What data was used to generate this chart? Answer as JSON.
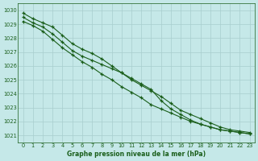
{
  "xlabel": "Graphe pression niveau de la mer (hPa)",
  "ylim": [
    1020.5,
    1030.5
  ],
  "xlim": [
    -0.5,
    23.5
  ],
  "yticks": [
    1021,
    1022,
    1023,
    1024,
    1025,
    1026,
    1027,
    1028,
    1029,
    1030
  ],
  "xticks": [
    0,
    1,
    2,
    3,
    4,
    5,
    6,
    7,
    8,
    9,
    10,
    11,
    12,
    13,
    14,
    15,
    16,
    17,
    18,
    19,
    20,
    21,
    22,
    23
  ],
  "bg_color": "#c5e8e8",
  "grid_color": "#a8cece",
  "line_color": "#1a5e1a",
  "line1": [
    1029.8,
    1029.4,
    1029.1,
    1028.8,
    1028.2,
    1027.6,
    1027.2,
    1026.9,
    1026.5,
    1026.0,
    1025.5,
    1025.0,
    1024.6,
    1024.2,
    1023.8,
    1023.3,
    1022.8,
    1022.5,
    1022.2,
    1021.9,
    1021.6,
    1021.4,
    1021.3,
    1021.2
  ],
  "line2": [
    1029.5,
    1029.1,
    1028.8,
    1028.3,
    1027.7,
    1027.1,
    1026.7,
    1026.4,
    1026.1,
    1025.8,
    1025.5,
    1025.1,
    1024.7,
    1024.3,
    1023.5,
    1022.9,
    1022.5,
    1022.1,
    1021.8,
    1021.6,
    1021.4,
    1021.3,
    1021.2,
    1021.1
  ],
  "line3": [
    1029.2,
    1028.9,
    1028.5,
    1027.9,
    1027.3,
    1026.8,
    1026.3,
    1025.9,
    1025.4,
    1025.0,
    1024.5,
    1024.1,
    1023.7,
    1023.2,
    1022.9,
    1022.6,
    1022.3,
    1022.0,
    1021.8,
    1021.6,
    1021.4,
    1021.3,
    1021.2,
    1021.1
  ]
}
